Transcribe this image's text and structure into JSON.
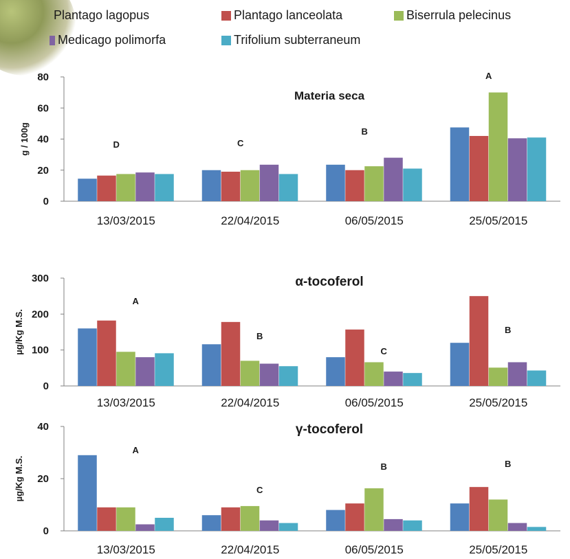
{
  "legend": {
    "items": [
      {
        "label": "Plantago lagopus",
        "color": "#4f81bd"
      },
      {
        "label": "Plantago lanceolata",
        "color": "#c0504d"
      },
      {
        "label": "Biserrula pelecinus",
        "color": "#9bbb59"
      },
      {
        "label": "Medicago polimorfa",
        "color": "#8064a2"
      },
      {
        "label": "Trifolium subterraneum",
        "color": "#4bacc6"
      }
    ]
  },
  "chart_data": [
    {
      "type": "bar",
      "title": "Materia seca",
      "ylabel": "g / 100g",
      "ylim": [
        0,
        80
      ],
      "yticks": [
        0,
        20,
        40,
        60,
        80
      ],
      "categories": [
        "13/03/2015",
        "22/04/2015",
        "06/05/2015",
        "25/05/2015"
      ],
      "group_letters": [
        "D",
        "C",
        "B",
        "A"
      ],
      "series": [
        {
          "name": "Plantago lagopus",
          "values": [
            14.5,
            20,
            23.5,
            47.5
          ]
        },
        {
          "name": "Plantago lanceolata",
          "values": [
            16.5,
            19,
            20,
            42
          ]
        },
        {
          "name": "Biserrula pelecinus",
          "values": [
            17.5,
            20,
            22.5,
            70
          ]
        },
        {
          "name": "Medicago polimorfa",
          "values": [
            18.5,
            23.5,
            28,
            40.5
          ]
        },
        {
          "name": "Trifolium subterraneum",
          "values": [
            17.5,
            17.5,
            21,
            41
          ]
        }
      ]
    },
    {
      "type": "bar",
      "title": "α-tocoferol",
      "ylabel": "µg/Kg M.S.",
      "ylim": [
        0,
        300
      ],
      "yticks": [
        0,
        100,
        200,
        300
      ],
      "categories": [
        "13/03/2015",
        "22/04/2015",
        "06/05/2015",
        "25/05/2015"
      ],
      "group_letters": [
        "A",
        "B",
        "C",
        "B"
      ],
      "series": [
        {
          "name": "Plantago lagopus",
          "values": [
            160,
            116,
            80,
            120
          ]
        },
        {
          "name": "Plantago lanceolata",
          "values": [
            182,
            178,
            157,
            250
          ]
        },
        {
          "name": "Biserrula pelecinus",
          "values": [
            95,
            70,
            66,
            51
          ]
        },
        {
          "name": "Medicago polimorfa",
          "values": [
            80,
            62,
            40,
            66
          ]
        },
        {
          "name": "Trifolium subterraneum",
          "values": [
            91,
            55,
            36,
            43
          ]
        }
      ]
    },
    {
      "type": "bar",
      "title": "γ-tocoferol",
      "ylabel": "µg/Kg M.S.",
      "ylim": [
        0,
        40
      ],
      "yticks": [
        0,
        20,
        40
      ],
      "categories": [
        "13/03/2015",
        "22/04/2015",
        "06/05/2015",
        "25/05/2015"
      ],
      "group_letters": [
        "A",
        "C",
        "B",
        "B"
      ],
      "series": [
        {
          "name": "Plantago lagopus",
          "values": [
            29,
            6,
            8,
            10.5
          ]
        },
        {
          "name": "Plantago lanceolata",
          "values": [
            9,
            9,
            10.5,
            16.8
          ]
        },
        {
          "name": "Biserrula pelecinus",
          "values": [
            9,
            9.5,
            16.3,
            12
          ]
        },
        {
          "name": "Medicago polimorfa",
          "values": [
            2.5,
            4,
            4.5,
            3
          ]
        },
        {
          "name": "Trifolium subterraneum",
          "values": [
            5,
            3,
            4,
            1.5
          ]
        }
      ]
    }
  ]
}
